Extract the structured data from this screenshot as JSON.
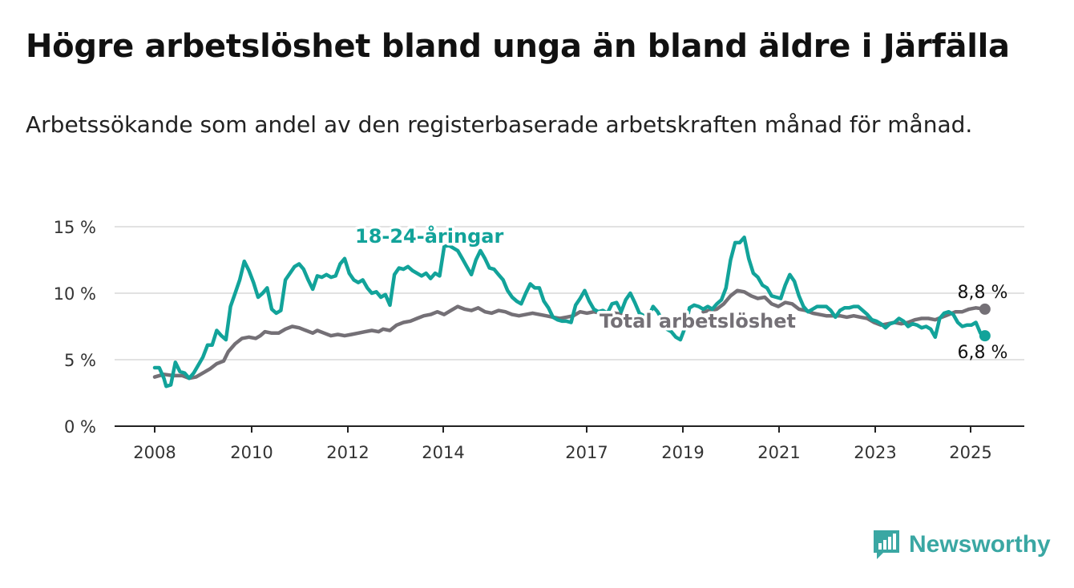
{
  "title": "Högre arbetslöshet bland unga än bland äldre i Järfälla",
  "subtitle": "Arbetssökande som andel av den registerbaserade arbetskraften månad för månad.",
  "brand": {
    "name": "Newsworthy",
    "icon": "bar-chart-logo-icon",
    "color": "#3aa7a3"
  },
  "chart_data": {
    "type": "line",
    "ylim": [
      0,
      15
    ],
    "y_ticks": [
      0,
      5,
      10,
      15
    ],
    "y_tick_labels": [
      "0 %",
      "5 %",
      "10 %",
      "15 %"
    ],
    "x_range": [
      2007.15,
      2026.0
    ],
    "x_ticks": [
      2008,
      2010,
      2012,
      2014,
      2017,
      2019,
      2021,
      2023,
      2025
    ],
    "x_tick_labels": [
      "2008",
      "2010",
      "2012",
      "2014",
      "2017",
      "2019",
      "2021",
      "2023",
      "2025"
    ],
    "grid": true,
    "series": [
      {
        "name": "18-24-åringar",
        "color": "#12a39a",
        "end_label": "6,8 %",
        "points": [
          [
            2008.0,
            4.4
          ],
          [
            2008.1,
            4.4
          ],
          [
            2008.2,
            3.6
          ],
          [
            2008.25,
            3.0
          ],
          [
            2008.35,
            3.1
          ],
          [
            2008.45,
            4.8
          ],
          [
            2008.55,
            4.1
          ],
          [
            2008.65,
            4.0
          ],
          [
            2008.75,
            3.6
          ],
          [
            2008.85,
            4.0
          ],
          [
            2008.95,
            4.6
          ],
          [
            2009.05,
            5.2
          ],
          [
            2009.15,
            6.1
          ],
          [
            2009.25,
            6.1
          ],
          [
            2009.35,
            7.2
          ],
          [
            2009.45,
            6.8
          ],
          [
            2009.55,
            6.5
          ],
          [
            2009.65,
            9.0
          ],
          [
            2009.75,
            10.0
          ],
          [
            2009.85,
            11.0
          ],
          [
            2009.95,
            12.4
          ],
          [
            2010.05,
            11.7
          ],
          [
            2010.15,
            10.8
          ],
          [
            2010.25,
            9.7
          ],
          [
            2010.35,
            10.0
          ],
          [
            2010.45,
            10.4
          ],
          [
            2010.55,
            8.8
          ],
          [
            2010.65,
            8.5
          ],
          [
            2010.75,
            8.7
          ],
          [
            2010.85,
            11.0
          ],
          [
            2010.95,
            11.5
          ],
          [
            2011.05,
            12.0
          ],
          [
            2011.15,
            12.2
          ],
          [
            2011.25,
            11.8
          ],
          [
            2011.35,
            11.0
          ],
          [
            2011.45,
            10.3
          ],
          [
            2011.55,
            11.3
          ],
          [
            2011.65,
            11.2
          ],
          [
            2011.75,
            11.4
          ],
          [
            2011.85,
            11.2
          ],
          [
            2011.95,
            11.3
          ],
          [
            2012.05,
            12.2
          ],
          [
            2012.15,
            12.6
          ],
          [
            2012.25,
            11.5
          ],
          [
            2012.35,
            11.0
          ],
          [
            2012.45,
            10.8
          ],
          [
            2012.55,
            11.0
          ],
          [
            2012.65,
            10.4
          ],
          [
            2012.75,
            10.0
          ],
          [
            2012.85,
            10.1
          ],
          [
            2012.95,
            9.7
          ],
          [
            2013.05,
            9.9
          ],
          [
            2013.15,
            9.1
          ],
          [
            2013.25,
            11.4
          ],
          [
            2013.35,
            11.9
          ],
          [
            2013.45,
            11.8
          ],
          [
            2013.55,
            12.0
          ],
          [
            2013.65,
            11.7
          ],
          [
            2013.75,
            11.5
          ],
          [
            2013.85,
            11.3
          ],
          [
            2013.95,
            11.5
          ],
          [
            2014.05,
            11.1
          ],
          [
            2014.15,
            11.5
          ],
          [
            2014.25,
            11.3
          ],
          [
            2014.35,
            13.5
          ],
          [
            2014.45,
            13.6
          ],
          [
            2014.55,
            13.4
          ],
          [
            2014.65,
            13.2
          ],
          [
            2014.75,
            12.6
          ],
          [
            2014.85,
            12.0
          ],
          [
            2014.95,
            11.4
          ],
          [
            2015.05,
            12.5
          ],
          [
            2015.15,
            13.2
          ],
          [
            2015.25,
            12.6
          ],
          [
            2015.35,
            11.9
          ],
          [
            2015.45,
            11.8
          ],
          [
            2015.55,
            11.4
          ],
          [
            2015.65,
            11.0
          ],
          [
            2015.75,
            10.2
          ],
          [
            2015.85,
            9.7
          ],
          [
            2015.95,
            9.4
          ],
          [
            2016.05,
            9.2
          ],
          [
            2016.15,
            10.0
          ],
          [
            2016.25,
            10.7
          ],
          [
            2016.35,
            10.4
          ],
          [
            2016.45,
            10.4
          ],
          [
            2016.55,
            9.4
          ],
          [
            2016.65,
            8.9
          ],
          [
            2016.75,
            8.2
          ],
          [
            2016.85,
            8.0
          ],
          [
            2016.95,
            7.9
          ],
          [
            2017.05,
            7.9
          ],
          [
            2017.15,
            7.8
          ],
          [
            2017.25,
            9.1
          ],
          [
            2017.35,
            9.6
          ],
          [
            2017.45,
            10.2
          ],
          [
            2017.55,
            9.4
          ],
          [
            2017.65,
            8.8
          ],
          [
            2017.75,
            8.6
          ],
          [
            2017.85,
            8.7
          ],
          [
            2017.95,
            8.5
          ],
          [
            2018.05,
            9.2
          ],
          [
            2018.15,
            9.3
          ],
          [
            2018.25,
            8.6
          ],
          [
            2018.35,
            9.5
          ],
          [
            2018.45,
            10.0
          ],
          [
            2018.55,
            9.3
          ],
          [
            2018.65,
            8.5
          ]
        ],
        "points2": [
          [
            2019.75,
            8.9
          ],
          [
            2019.85,
            9.1
          ],
          [
            2019.95,
            9.0
          ],
          [
            2020.05,
            8.8
          ],
          [
            2020.15,
            9.0
          ],
          [
            2020.25,
            8.8
          ],
          [
            2020.35,
            9.2
          ],
          [
            2020.45,
            9.5
          ],
          [
            2020.55,
            10.4
          ],
          [
            2020.65,
            12.5
          ],
          [
            2020.75,
            13.8
          ],
          [
            2020.85,
            13.8
          ],
          [
            2020.95,
            14.2
          ],
          [
            2021.05,
            12.6
          ],
          [
            2021.15,
            11.5
          ],
          [
            2021.25,
            11.2
          ],
          [
            2021.35,
            10.6
          ],
          [
            2021.45,
            10.4
          ],
          [
            2021.55,
            9.8
          ],
          [
            2021.65,
            9.7
          ],
          [
            2021.75,
            9.6
          ],
          [
            2021.85,
            10.6
          ],
          [
            2021.95,
            11.4
          ],
          [
            2022.05,
            10.9
          ],
          [
            2022.15,
            9.8
          ],
          [
            2022.25,
            9.0
          ],
          [
            2022.35,
            8.6
          ],
          [
            2022.45,
            8.8
          ],
          [
            2022.55,
            9.0
          ],
          [
            2022.65,
            9.0
          ],
          [
            2022.75,
            9.0
          ],
          [
            2022.85,
            8.7
          ],
          [
            2022.95,
            8.2
          ],
          [
            2023.05,
            8.7
          ],
          [
            2023.15,
            8.9
          ],
          [
            2023.25,
            8.9
          ],
          [
            2023.35,
            9.0
          ],
          [
            2023.45,
            9.0
          ],
          [
            2023.55,
            8.7
          ],
          [
            2023.65,
            8.4
          ],
          [
            2023.75,
            8.0
          ],
          [
            2023.85,
            7.9
          ],
          [
            2023.95,
            7.7
          ],
          [
            2024.05,
            7.4
          ],
          [
            2024.15,
            7.7
          ],
          [
            2024.25,
            7.8
          ],
          [
            2024.35,
            8.1
          ],
          [
            2024.45,
            7.9
          ],
          [
            2024.55,
            7.5
          ],
          [
            2024.65,
            7.7
          ],
          [
            2024.75,
            7.6
          ],
          [
            2024.85,
            7.4
          ],
          [
            2024.95,
            7.5
          ],
          [
            2025.05,
            7.3
          ],
          [
            2025.15,
            6.7
          ],
          [
            2025.25,
            8.1
          ],
          [
            2025.35,
            8.5
          ],
          [
            2025.45,
            8.6
          ],
          [
            2025.55,
            8.4
          ],
          [
            2025.65,
            7.8
          ],
          [
            2025.75,
            7.5
          ],
          [
            2025.85,
            7.6
          ],
          [
            2025.95,
            7.6
          ],
          [
            2026.05,
            7.8
          ],
          [
            2026.15,
            7.0
          ],
          [
            2026.25,
            6.8
          ]
        ],
        "points3": [
          [
            2018.65,
            8.5
          ],
          [
            2018.75,
            8.3
          ],
          [
            2018.85,
            8.2
          ],
          [
            2018.95,
            9.0
          ],
          [
            2019.05,
            8.6
          ],
          [
            2019.15,
            8.0
          ],
          [
            2019.25,
            7.3
          ],
          [
            2019.35,
            7.1
          ],
          [
            2019.45,
            6.7
          ],
          [
            2019.55,
            6.5
          ],
          [
            2019.65,
            7.4
          ],
          [
            2019.75,
            8.9
          ]
        ]
      },
      {
        "name": "Total arbetslöshet",
        "color": "#747076",
        "end_label": "8,8 %",
        "points": [
          [
            2008.0,
            3.7
          ],
          [
            2008.2,
            3.9
          ],
          [
            2008.4,
            3.8
          ],
          [
            2008.6,
            3.8
          ],
          [
            2008.75,
            3.6
          ],
          [
            2008.9,
            3.7
          ],
          [
            2009.05,
            4.0
          ],
          [
            2009.2,
            4.3
          ],
          [
            2009.35,
            4.7
          ],
          [
            2009.5,
            4.9
          ],
          [
            2009.6,
            5.6
          ],
          [
            2009.75,
            6.2
          ],
          [
            2009.9,
            6.6
          ],
          [
            2010.05,
            6.7
          ],
          [
            2010.2,
            6.6
          ],
          [
            2010.3,
            6.8
          ],
          [
            2010.4,
            7.1
          ],
          [
            2010.55,
            7.0
          ],
          [
            2010.7,
            7.0
          ],
          [
            2010.85,
            7.3
          ],
          [
            2011.0,
            7.5
          ],
          [
            2011.15,
            7.4
          ],
          [
            2011.3,
            7.2
          ],
          [
            2011.45,
            7.0
          ],
          [
            2011.55,
            7.2
          ],
          [
            2011.7,
            7.0
          ],
          [
            2011.85,
            6.8
          ],
          [
            2012.0,
            6.9
          ],
          [
            2012.15,
            6.8
          ],
          [
            2012.3,
            6.9
          ],
          [
            2012.45,
            7.0
          ],
          [
            2012.6,
            7.1
          ],
          [
            2012.75,
            7.2
          ],
          [
            2012.9,
            7.1
          ],
          [
            2013.0,
            7.3
          ],
          [
            2013.15,
            7.2
          ],
          [
            2013.3,
            7.6
          ],
          [
            2013.45,
            7.8
          ],
          [
            2013.6,
            7.9
          ],
          [
            2013.75,
            8.1
          ],
          [
            2013.9,
            8.3
          ],
          [
            2014.05,
            8.4
          ],
          [
            2014.2,
            8.6
          ],
          [
            2014.35,
            8.4
          ],
          [
            2014.5,
            8.7
          ],
          [
            2014.65,
            9.0
          ],
          [
            2014.8,
            8.8
          ],
          [
            2014.95,
            8.7
          ],
          [
            2015.1,
            8.9
          ],
          [
            2015.25,
            8.6
          ],
          [
            2015.4,
            8.5
          ],
          [
            2015.55,
            8.7
          ],
          [
            2015.7,
            8.6
          ],
          [
            2015.85,
            8.4
          ],
          [
            2016.0,
            8.3
          ],
          [
            2016.15,
            8.4
          ],
          [
            2016.3,
            8.5
          ],
          [
            2016.45,
            8.4
          ],
          [
            2016.6,
            8.3
          ],
          [
            2016.75,
            8.2
          ],
          [
            2016.9,
            8.1
          ],
          [
            2017.05,
            8.2
          ],
          [
            2017.2,
            8.3
          ],
          [
            2017.35,
            8.6
          ],
          [
            2017.5,
            8.5
          ],
          [
            2017.65,
            8.6
          ],
          [
            2017.8,
            8.5
          ],
          [
            2017.95,
            8.4
          ],
          [
            2018.1,
            8.5
          ],
          [
            2018.3,
            8.4
          ]
        ],
        "points2": [
          [
            2020.05,
            8.6
          ],
          [
            2020.2,
            8.7
          ],
          [
            2020.35,
            8.8
          ],
          [
            2020.5,
            9.2
          ],
          [
            2020.65,
            9.8
          ],
          [
            2020.8,
            10.2
          ],
          [
            2020.95,
            10.1
          ],
          [
            2021.1,
            9.8
          ],
          [
            2021.25,
            9.6
          ],
          [
            2021.4,
            9.7
          ],
          [
            2021.55,
            9.2
          ],
          [
            2021.7,
            9.0
          ],
          [
            2021.85,
            9.3
          ],
          [
            2022.0,
            9.2
          ],
          [
            2022.15,
            8.8
          ],
          [
            2022.3,
            8.7
          ],
          [
            2022.45,
            8.5
          ],
          [
            2022.6,
            8.4
          ],
          [
            2022.75,
            8.3
          ],
          [
            2022.9,
            8.3
          ],
          [
            2023.05,
            8.3
          ],
          [
            2023.2,
            8.2
          ],
          [
            2023.35,
            8.3
          ],
          [
            2023.5,
            8.2
          ],
          [
            2023.65,
            8.1
          ],
          [
            2023.8,
            7.8
          ],
          [
            2023.95,
            7.6
          ],
          [
            2024.1,
            7.7
          ],
          [
            2024.25,
            7.8
          ],
          [
            2024.4,
            7.7
          ],
          [
            2024.55,
            7.8
          ],
          [
            2024.7,
            8.0
          ],
          [
            2024.85,
            8.1
          ],
          [
            2025.0,
            8.1
          ],
          [
            2025.15,
            8.0
          ],
          [
            2025.3,
            8.2
          ],
          [
            2025.45,
            8.4
          ],
          [
            2025.6,
            8.6
          ],
          [
            2025.75,
            8.6
          ],
          [
            2025.9,
            8.8
          ],
          [
            2026.05,
            8.9
          ],
          [
            2026.25,
            8.8
          ]
        ],
        "points3": []
      }
    ]
  }
}
